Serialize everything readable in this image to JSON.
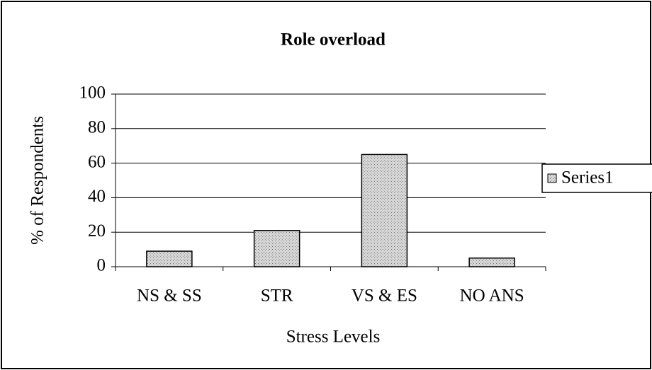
{
  "chart_data": {
    "type": "bar",
    "title": "Role overload",
    "x_label": "Stress Levels",
    "y_label": "% of Respondents",
    "categories": [
      "NS & SS",
      "STR",
      "VS & ES",
      "NO ANS"
    ],
    "series": [
      {
        "name": "Series1",
        "color": "#c4c4c4",
        "values": [
          9,
          21,
          65,
          5
        ]
      }
    ],
    "ylim": [
      0,
      100
    ],
    "yticks": [
      0,
      20,
      40,
      60,
      80,
      100
    ],
    "grid": true,
    "legend": "right"
  }
}
